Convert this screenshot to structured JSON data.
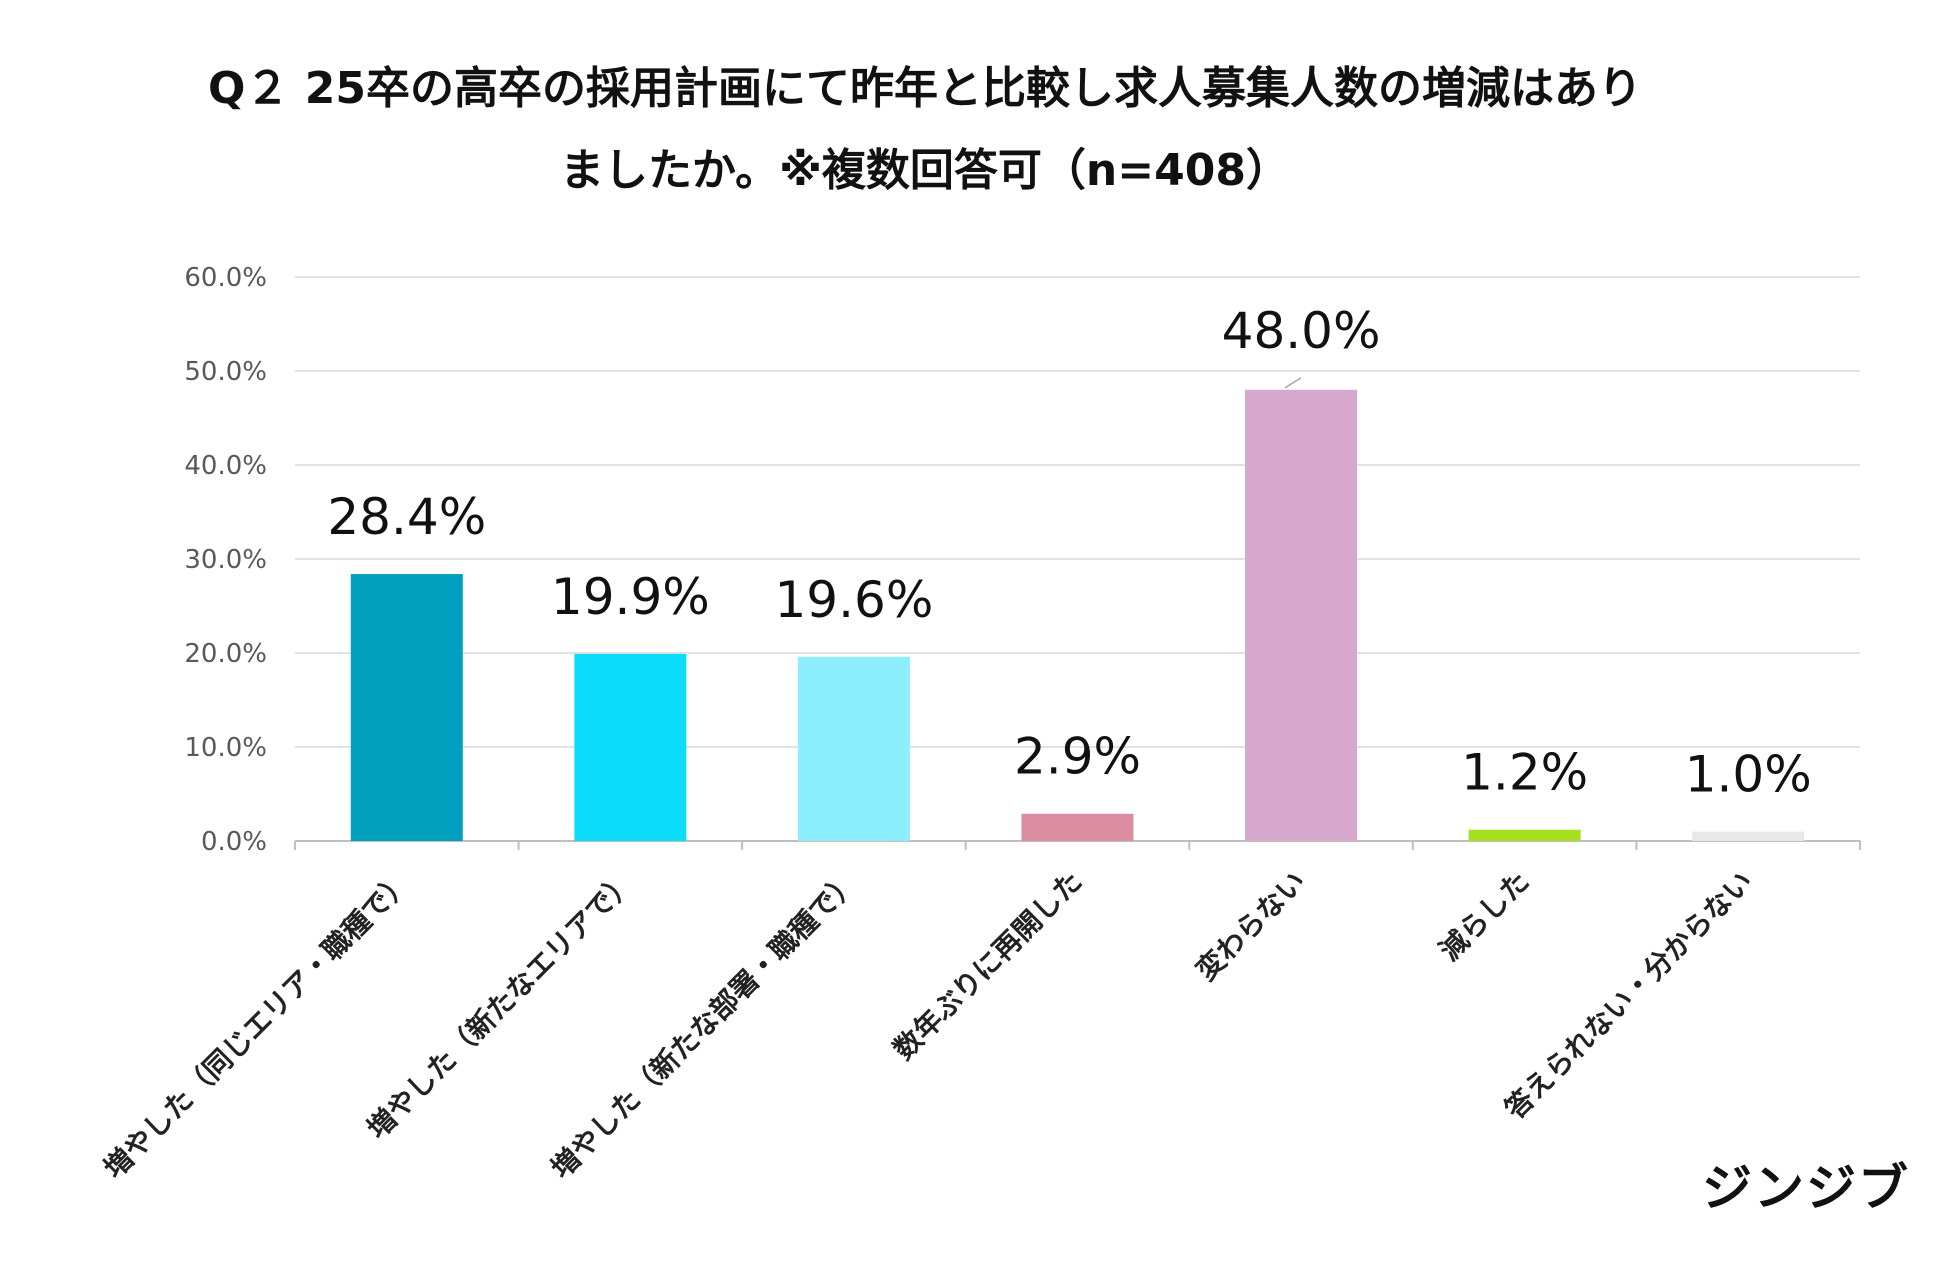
{
  "title_lines": [
    "Q２ 25卒の高卒の採用計画にて昨年と比較し求人募集人数の増減はあり",
    "ましたか。※複数回答可（n=408）"
  ],
  "brand": "ジンジブ",
  "chart_data": {
    "type": "bar",
    "title": "Q２ 25卒の高卒の採用計画にて昨年と比較し求人募集人数の増減はありましたか。※複数回答可（n=408）",
    "xlabel": "",
    "ylabel": "",
    "ylim": [
      0,
      60
    ],
    "yticks": [
      0,
      10,
      20,
      30,
      40,
      50,
      60
    ],
    "ytick_labels": [
      "0.0%",
      "10.0%",
      "20.0%",
      "30.0%",
      "40.0%",
      "50.0%",
      "60.0%"
    ],
    "grid": true,
    "categories": [
      "増やした（同じエリア・職種で）",
      "増やした（新たなエリアで）",
      "増やした（新たな部署・職種で）",
      "数年ぶりに再開した",
      "変わらない",
      "減らした",
      "答えられない・分からない"
    ],
    "values": [
      28.4,
      19.9,
      19.6,
      2.9,
      48.0,
      1.2,
      1.0
    ],
    "value_labels": [
      "28.4%",
      "19.9%",
      "19.6%",
      "2.9%",
      "48.0%",
      "1.2%",
      "1.0%"
    ],
    "colors": [
      "#00A0BE",
      "#0BDCFA",
      "#8CEEFE",
      "#DC8CA0",
      "#D6A8CD",
      "#A4E01F",
      "#E8E8E8"
    ]
  }
}
